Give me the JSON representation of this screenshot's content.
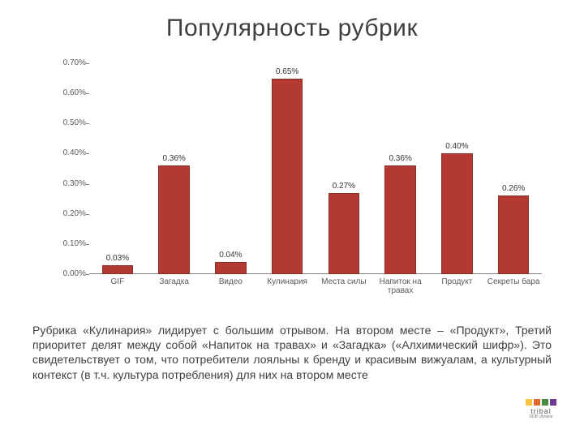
{
  "title": "Популярность рубрик",
  "chart": {
    "type": "bar",
    "categories": [
      "GIF",
      "Загадка",
      "Видео",
      "Кулинария",
      "Места силы",
      "Напиток на травах",
      "Продукт",
      "Секреты бара"
    ],
    "values": [
      0.03,
      0.36,
      0.04,
      0.65,
      0.27,
      0.36,
      0.4,
      0.26
    ],
    "value_labels": [
      "0.03%",
      "0.36%",
      "0.04%",
      "0.65%",
      "0.27%",
      "0.36%",
      "0.40%",
      "0.26%"
    ],
    "bar_color": "#b23a32",
    "bar_border_color": "#8a2d27",
    "ylim": [
      0,
      0.7
    ],
    "ytick_step": 0.1,
    "ytick_labels": [
      "0.00%",
      "0.10%",
      "0.20%",
      "0.30%",
      "0.40%",
      "0.50%",
      "0.60%",
      "0.70%"
    ],
    "background_color": "#ffffff",
    "axis_color": "#808080",
    "tick_label_color": "#595959",
    "label_fontsize": 10,
    "value_fontsize": 10,
    "bar_width_ratio": 0.55
  },
  "body_text": "Рубрика «Кулинария» лидирует с большим отрывом. На втором месте – «Продукт», Третий приоритет делят между собой «Напиток на травах» и «Загадка» («Алхимический шифр»). Это свидетельствует о том, что потребители лояльны к бренду и красивым вижуалам, а культурный контекст (в т.ч. культура потребления) для них на втором месте",
  "logo": {
    "brand": "tribal",
    "sub": "DDB Ukraine",
    "square_colors": [
      "#f6c642",
      "#e06a2f",
      "#4a8a3f",
      "#6c3a90"
    ]
  }
}
